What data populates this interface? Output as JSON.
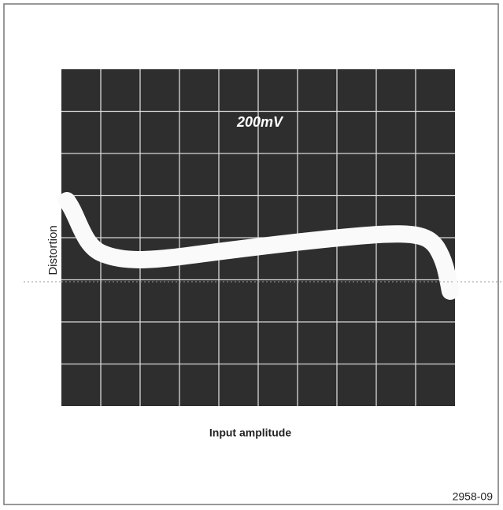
{
  "figure": {
    "screen_label": "200mV",
    "y_label": "Distortion",
    "x_label": "Input amplitude",
    "figure_number": "2958-09"
  }
}
